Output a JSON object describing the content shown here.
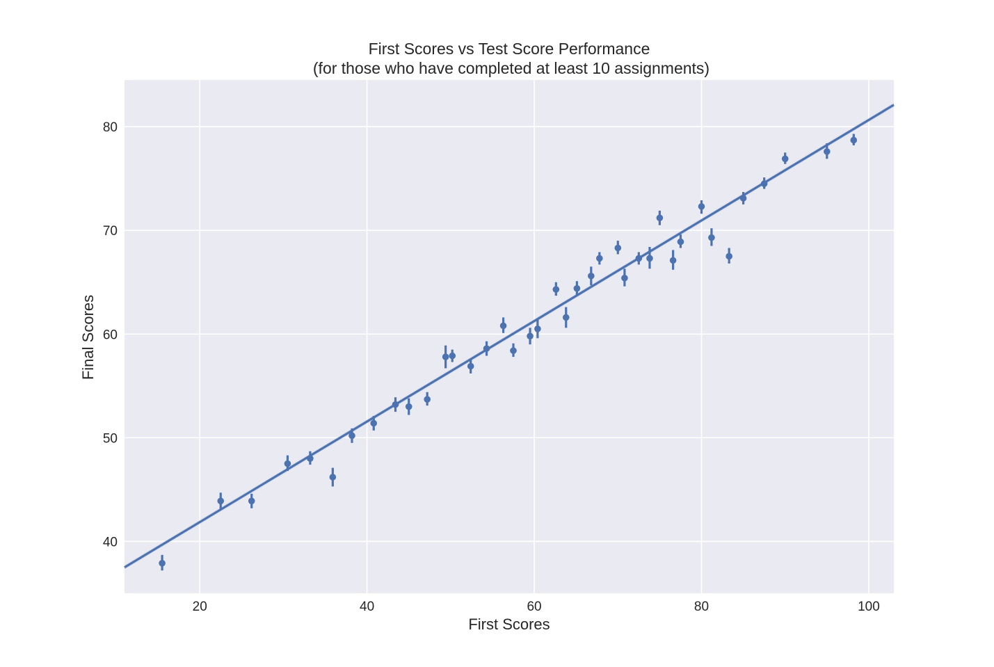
{
  "chart_data": {
    "type": "scatter",
    "title_line1": "First Scores vs Test Score Performance",
    "title_line2": "(for those who have completed at least 10 assignments)",
    "xlabel": "First Scores",
    "ylabel": "Final Scores",
    "xlim": [
      11,
      103
    ],
    "ylim": [
      35,
      84.5
    ],
    "xticks": [
      20,
      40,
      60,
      80,
      100
    ],
    "yticks": [
      40,
      50,
      60,
      70,
      80
    ],
    "grid": true,
    "colors": {
      "series": "#4c72b0",
      "plot_bg": "#eaeaf2",
      "grid": "#ffffff",
      "text": "#262626"
    },
    "regression": {
      "x": [
        11,
        103
      ],
      "y": [
        37.5,
        82.1
      ]
    },
    "points": [
      {
        "x": 15.5,
        "y": 37.9,
        "lo": 37.2,
        "hi": 38.7
      },
      {
        "x": 22.5,
        "y": 43.9,
        "lo": 43.1,
        "hi": 44.7
      },
      {
        "x": 26.2,
        "y": 43.9,
        "lo": 43.2,
        "hi": 44.6
      },
      {
        "x": 30.5,
        "y": 47.5,
        "lo": 46.8,
        "hi": 48.3
      },
      {
        "x": 33.2,
        "y": 48.0,
        "lo": 47.4,
        "hi": 48.7
      },
      {
        "x": 35.9,
        "y": 46.2,
        "lo": 45.3,
        "hi": 47.1
      },
      {
        "x": 38.2,
        "y": 50.2,
        "lo": 49.5,
        "hi": 50.9
      },
      {
        "x": 40.8,
        "y": 51.4,
        "lo": 50.7,
        "hi": 52.1
      },
      {
        "x": 43.4,
        "y": 53.2,
        "lo": 52.5,
        "hi": 53.9
      },
      {
        "x": 45.0,
        "y": 53.0,
        "lo": 52.2,
        "hi": 53.8
      },
      {
        "x": 47.2,
        "y": 53.7,
        "lo": 53.1,
        "hi": 54.4
      },
      {
        "x": 49.4,
        "y": 57.8,
        "lo": 56.7,
        "hi": 58.9
      },
      {
        "x": 50.2,
        "y": 57.9,
        "lo": 57.3,
        "hi": 58.5
      },
      {
        "x": 52.4,
        "y": 56.9,
        "lo": 56.2,
        "hi": 57.6
      },
      {
        "x": 54.3,
        "y": 58.6,
        "lo": 57.9,
        "hi": 59.3
      },
      {
        "x": 56.3,
        "y": 60.8,
        "lo": 60.1,
        "hi": 61.6
      },
      {
        "x": 57.5,
        "y": 58.4,
        "lo": 57.8,
        "hi": 59.1
      },
      {
        "x": 59.5,
        "y": 59.8,
        "lo": 59.0,
        "hi": 60.6
      },
      {
        "x": 60.4,
        "y": 60.5,
        "lo": 59.6,
        "hi": 61.4
      },
      {
        "x": 62.6,
        "y": 64.3,
        "lo": 63.7,
        "hi": 65.0
      },
      {
        "x": 63.8,
        "y": 61.6,
        "lo": 60.6,
        "hi": 62.6
      },
      {
        "x": 65.1,
        "y": 64.4,
        "lo": 63.7,
        "hi": 65.1
      },
      {
        "x": 66.8,
        "y": 65.6,
        "lo": 64.7,
        "hi": 66.5
      },
      {
        "x": 67.8,
        "y": 67.3,
        "lo": 66.7,
        "hi": 67.9
      },
      {
        "x": 70.0,
        "y": 68.3,
        "lo": 67.7,
        "hi": 69.0
      },
      {
        "x": 70.8,
        "y": 65.4,
        "lo": 64.6,
        "hi": 66.3
      },
      {
        "x": 72.5,
        "y": 67.3,
        "lo": 66.7,
        "hi": 67.9
      },
      {
        "x": 73.8,
        "y": 67.3,
        "lo": 66.3,
        "hi": 68.4
      },
      {
        "x": 75.0,
        "y": 71.2,
        "lo": 70.5,
        "hi": 71.9
      },
      {
        "x": 76.6,
        "y": 67.1,
        "lo": 66.2,
        "hi": 68.1
      },
      {
        "x": 77.5,
        "y": 68.9,
        "lo": 68.3,
        "hi": 69.6
      },
      {
        "x": 80.0,
        "y": 72.3,
        "lo": 71.6,
        "hi": 72.9
      },
      {
        "x": 81.2,
        "y": 69.3,
        "lo": 68.5,
        "hi": 70.2
      },
      {
        "x": 83.3,
        "y": 67.5,
        "lo": 66.8,
        "hi": 68.3
      },
      {
        "x": 85.0,
        "y": 73.1,
        "lo": 72.5,
        "hi": 73.7
      },
      {
        "x": 87.5,
        "y": 74.5,
        "lo": 74.0,
        "hi": 75.1
      },
      {
        "x": 90.0,
        "y": 76.9,
        "lo": 76.4,
        "hi": 77.5
      },
      {
        "x": 95.0,
        "y": 77.6,
        "lo": 76.9,
        "hi": 78.4
      },
      {
        "x": 98.2,
        "y": 78.7,
        "lo": 78.2,
        "hi": 79.3
      }
    ]
  }
}
